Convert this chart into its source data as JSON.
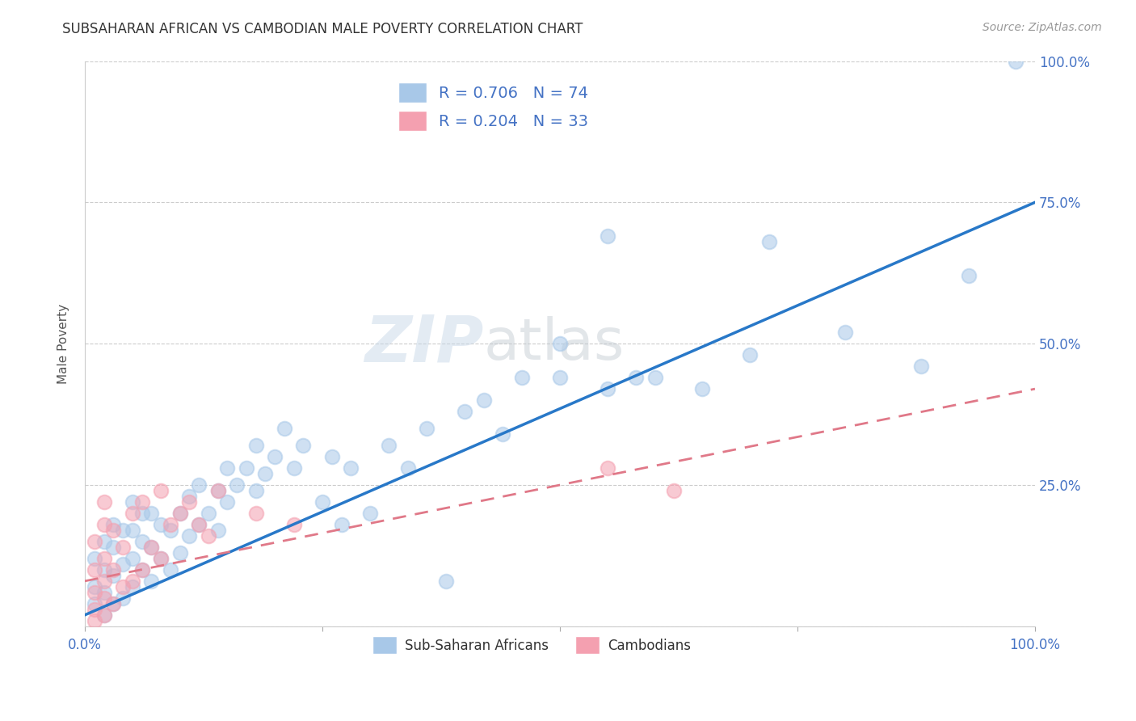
{
  "title": "SUBSAHARAN AFRICAN VS CAMBODIAN MALE POVERTY CORRELATION CHART",
  "source": "Source: ZipAtlas.com",
  "ylabel": "Male Poverty",
  "watermark_zip": "ZIP",
  "watermark_atlas": "atlas",
  "blue_R": "0.706",
  "blue_N": "74",
  "pink_R": "0.204",
  "pink_N": "33",
  "blue_scatter_color": "#a8c8e8",
  "pink_scatter_color": "#f4a0b0",
  "blue_line_color": "#2878c8",
  "pink_line_color": "#e07888",
  "legend_label_blue": "Sub-Saharan Africans",
  "legend_label_pink": "Cambodians",
  "xlim": [
    0.0,
    1.0
  ],
  "ylim": [
    0.0,
    1.0
  ],
  "xticks": [
    0.0,
    0.25,
    0.5,
    0.75,
    1.0
  ],
  "yticks": [
    0.0,
    0.25,
    0.5,
    0.75,
    1.0
  ],
  "xticklabels": [
    "0.0%",
    "",
    "",
    "",
    "100.0%"
  ],
  "yticklabels_right": [
    "",
    "25.0%",
    "50.0%",
    "75.0%",
    "100.0%"
  ],
  "blue_x": [
    0.01,
    0.01,
    0.01,
    0.02,
    0.02,
    0.02,
    0.02,
    0.03,
    0.03,
    0.03,
    0.03,
    0.04,
    0.04,
    0.04,
    0.05,
    0.05,
    0.05,
    0.05,
    0.06,
    0.06,
    0.06,
    0.07,
    0.07,
    0.07,
    0.08,
    0.08,
    0.09,
    0.09,
    0.1,
    0.1,
    0.11,
    0.11,
    0.12,
    0.12,
    0.13,
    0.14,
    0.14,
    0.15,
    0.15,
    0.16,
    0.17,
    0.18,
    0.18,
    0.19,
    0.2,
    0.21,
    0.22,
    0.23,
    0.25,
    0.26,
    0.27,
    0.28,
    0.3,
    0.32,
    0.34,
    0.36,
    0.38,
    0.4,
    0.42,
    0.44,
    0.46,
    0.5,
    0.5,
    0.55,
    0.55,
    0.58,
    0.6,
    0.65,
    0.7,
    0.72,
    0.8,
    0.88,
    0.93,
    0.98
  ],
  "blue_y": [
    0.04,
    0.07,
    0.12,
    0.02,
    0.06,
    0.1,
    0.15,
    0.04,
    0.09,
    0.14,
    0.18,
    0.05,
    0.11,
    0.17,
    0.07,
    0.12,
    0.17,
    0.22,
    0.1,
    0.15,
    0.2,
    0.08,
    0.14,
    0.2,
    0.12,
    0.18,
    0.1,
    0.17,
    0.13,
    0.2,
    0.16,
    0.23,
    0.18,
    0.25,
    0.2,
    0.17,
    0.24,
    0.22,
    0.28,
    0.25,
    0.28,
    0.24,
    0.32,
    0.27,
    0.3,
    0.35,
    0.28,
    0.32,
    0.22,
    0.3,
    0.18,
    0.28,
    0.2,
    0.32,
    0.28,
    0.35,
    0.08,
    0.38,
    0.4,
    0.34,
    0.44,
    0.5,
    0.44,
    0.42,
    0.69,
    0.44,
    0.44,
    0.42,
    0.48,
    0.68,
    0.52,
    0.46,
    0.62,
    1.0
  ],
  "pink_x": [
    0.01,
    0.01,
    0.01,
    0.01,
    0.01,
    0.02,
    0.02,
    0.02,
    0.02,
    0.02,
    0.02,
    0.03,
    0.03,
    0.03,
    0.04,
    0.04,
    0.05,
    0.05,
    0.06,
    0.06,
    0.07,
    0.08,
    0.08,
    0.09,
    0.1,
    0.11,
    0.12,
    0.13,
    0.14,
    0.18,
    0.22,
    0.55,
    0.62
  ],
  "pink_y": [
    0.01,
    0.03,
    0.06,
    0.1,
    0.15,
    0.02,
    0.05,
    0.08,
    0.12,
    0.18,
    0.22,
    0.04,
    0.1,
    0.17,
    0.07,
    0.14,
    0.08,
    0.2,
    0.1,
    0.22,
    0.14,
    0.12,
    0.24,
    0.18,
    0.2,
    0.22,
    0.18,
    0.16,
    0.24,
    0.2,
    0.18,
    0.28,
    0.24
  ],
  "background_color": "#ffffff",
  "grid_color": "#cccccc",
  "title_color": "#333333",
  "tick_color_right": "#4472c4",
  "tick_color_bottom": "#4472c4",
  "legend_text_color": "#4472c4"
}
